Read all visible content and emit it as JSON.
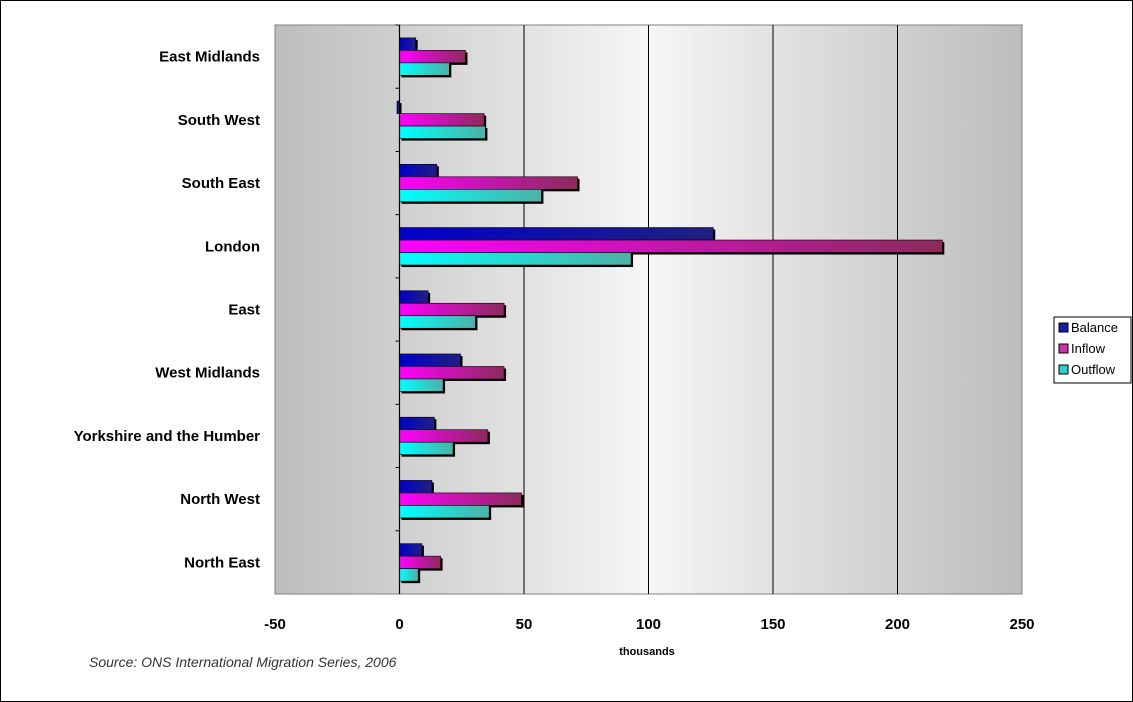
{
  "chart_data": {
    "type": "bar",
    "orientation": "horizontal",
    "categories": [
      "East Midlands",
      "South West",
      "South East",
      "London",
      "East",
      "West Midlands",
      "Yorkshire and the Humber",
      "North West",
      "North East"
    ],
    "series": [
      {
        "name": "Balance",
        "color": "#1a1aa8",
        "values": [
          6.5,
          -1,
          15,
          126,
          11.5,
          24.5,
          14,
          13,
          9
        ]
      },
      {
        "name": "Inflow",
        "color": "#cc33aa",
        "values": [
          26.5,
          34,
          71.5,
          218,
          42,
          42,
          35.5,
          49,
          16.5
        ]
      },
      {
        "name": "Outflow",
        "color": "#33cccc",
        "values": [
          20,
          34.5,
          57,
          93,
          30.5,
          17.5,
          21.5,
          36,
          7.5
        ]
      }
    ],
    "x_ticks": [
      "-50",
      "0",
      "50",
      "100",
      "150",
      "200",
      "250"
    ],
    "xlim": [
      -50,
      250
    ],
    "xlabel": "thousands",
    "ylabel": "",
    "grid": true,
    "legend_position": "right",
    "source": "Source: ONS International Migration Series, 2006"
  }
}
